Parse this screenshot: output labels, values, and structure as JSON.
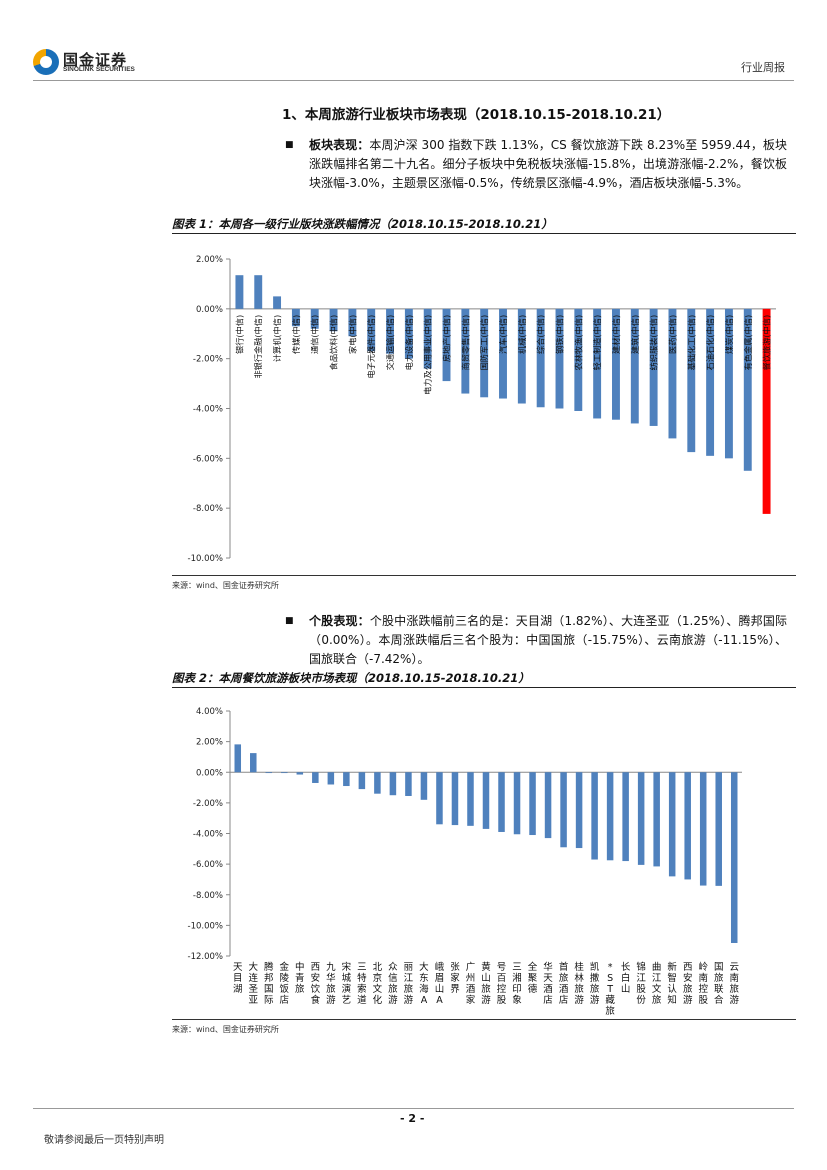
{
  "header": {
    "logo_cn": "国金证券",
    "logo_en": "SINOLINK SECURITIES",
    "report_type": "行业周报"
  },
  "section": {
    "title": "1、本周旅游行业板块市场表现（2018.10.15-2018.10.21）"
  },
  "para1": {
    "label": "板块表现：",
    "text": "本周沪深 300 指数下跌 1.13%，CS 餐饮旅游下跌 8.23%至 5959.44，板块涨跌幅排名第二十九名。细分子板块中免税板块涨幅-15.8%，出境游涨幅-2.2%，餐饮板块涨幅-3.0%，主题景区涨幅-0.5%，传统景区涨幅-4.9%，酒店板块涨幅-5.3%。"
  },
  "figure1": {
    "title": "图表 1：本周各一级行业版块涨跌幅情况（2018.10.15-2018.10.21）",
    "source": "来源：wind、国金证券研究所"
  },
  "para2": {
    "label": "个股表现：",
    "text": "个股中涨跌幅前三名的是：天目湖（1.82%）、大连圣亚（1.25%）、腾邦国际（0.00%）。本周涨跌幅后三名个股为：中国国旅（-15.75%）、云南旅游（-11.15%）、国旅联合（-7.42%）。"
  },
  "figure2": {
    "title": "图表 2：本周餐饮旅游板块市场表现（2018.10.15-2018.10.21）",
    "source": "来源：wind、国金证券研究所"
  },
  "chart_data": [
    {
      "type": "bar",
      "title": "本周各一级行业版块涨跌幅情况",
      "ylim": [
        -10,
        2
      ],
      "yticks": [
        "2.00%",
        "0.00%",
        "-2.00%",
        "-4.00%",
        "-6.00%",
        "-8.00%",
        "-10.00%"
      ],
      "tick_values": [
        2,
        0,
        -2,
        -4,
        -6,
        -8,
        -10
      ],
      "colors": {
        "bar": "#4f81bd",
        "highlight": "#ff0000"
      },
      "highlight_category": "餐饮旅游(中信)",
      "categories": [
        "银行(中信)",
        "非银行金融(中信)",
        "计算机(中信)",
        "传媒(中信)",
        "通信(中信)",
        "食品饮料(中信)",
        "家电(中信)",
        "电子元器件(中信)",
        "交通运输(中信)",
        "电力设备(中信)",
        "电力及公用事业(中信)",
        "房地产(中信)",
        "商贸零售(中信)",
        "国防军工(中信)",
        "汽车(中信)",
        "机械(中信)",
        "综合(中信)",
        "钢铁(中信)",
        "农林牧渔(中信)",
        "轻工制造(中信)",
        "建材(中信)",
        "建筑(中信)",
        "纺织服装(中信)",
        "医药(中信)",
        "基础化工(中信)",
        "石油石化(中信)",
        "煤炭(中信)",
        "有色金属(中信)",
        "餐饮旅游(中信)"
      ],
      "values": [
        1.35,
        1.35,
        0.5,
        -0.7,
        -0.8,
        -0.9,
        -1.1,
        -1.7,
        -1.8,
        -2.0,
        -2.4,
        -2.9,
        -3.4,
        -3.55,
        -3.6,
        -3.8,
        -3.95,
        -4.0,
        -4.1,
        -4.4,
        -4.45,
        -4.6,
        -4.7,
        -5.2,
        -5.75,
        -5.9,
        -6.0,
        -6.5,
        -8.23
      ]
    },
    {
      "type": "bar",
      "title": "本周餐饮旅游板块市场表现",
      "ylim": [
        -12,
        4
      ],
      "yticks": [
        "4.00%",
        "2.00%",
        "0.00%",
        "-2.00%",
        "-4.00%",
        "-6.00%",
        "-8.00%",
        "-10.00%",
        "-12.00%"
      ],
      "tick_values": [
        4,
        2,
        0,
        -2,
        -4,
        -6,
        -8,
        -10,
        -12
      ],
      "colors": {
        "bar": "#4f81bd"
      },
      "categories": [
        "天目湖",
        "大连圣亚",
        "腾邦国际",
        "金陵饭店",
        "中青旅",
        "西安饮食",
        "九华旅游",
        "宋城演艺",
        "三特索道",
        "北京文化",
        "众信旅游",
        "丽江旅游",
        "大东海A",
        "峨眉山A",
        "张家界",
        "广州酒家",
        "黄山旅游",
        "号百控股",
        "三湘印象",
        "全聚德",
        "华天酒店",
        "首旅酒店",
        "桂林旅游",
        "凯撒旅游",
        "*ST藏旅",
        "长白山",
        "锦江股份",
        "曲江文旅",
        "新智认知",
        "西安旅游",
        "岭南控股",
        "国旅联合",
        "云南旅游"
      ],
      "values": [
        1.82,
        1.25,
        0.0,
        0.0,
        -0.15,
        -0.7,
        -0.8,
        -0.9,
        -1.1,
        -1.4,
        -1.5,
        -1.55,
        -1.8,
        -3.4,
        -3.45,
        -3.5,
        -3.7,
        -3.9,
        -4.05,
        -4.1,
        -4.3,
        -4.9,
        -4.95,
        -5.7,
        -5.75,
        -5.8,
        -6.05,
        -6.15,
        -6.8,
        -7.0,
        -7.4,
        -7.42,
        -11.15
      ]
    }
  ],
  "footer": {
    "page": "- 2 -",
    "disclaimer": "敬请参阅最后一页特别声明"
  }
}
